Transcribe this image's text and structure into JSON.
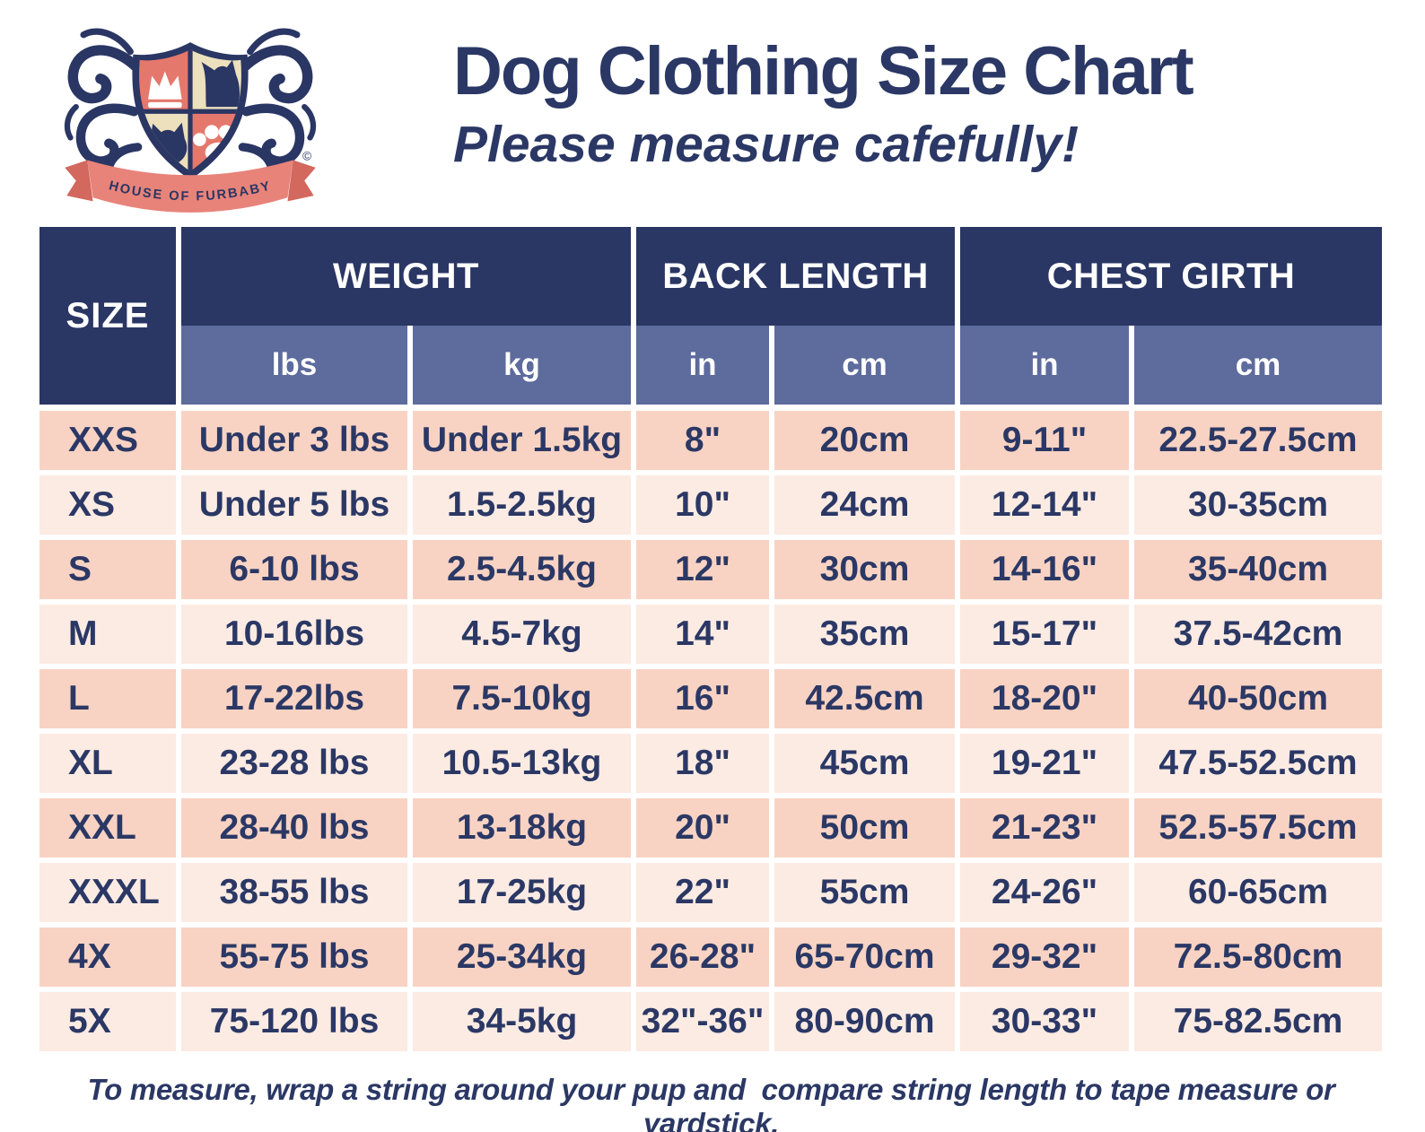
{
  "logo": {
    "banner": "HOUSE OF FURBABY",
    "copyright": "©"
  },
  "header": {
    "title": "Dog Clothing Size Chart",
    "subtitle": "Please measure cafefully!"
  },
  "table": {
    "size_header": "SIZE",
    "groups": [
      {
        "label": "WEIGHT",
        "units": [
          "lbs",
          "kg"
        ]
      },
      {
        "label": "BACK LENGTH",
        "units": [
          "in",
          "cm"
        ]
      },
      {
        "label": "CHEST GIRTH",
        "units": [
          "in",
          "cm"
        ]
      }
    ]
  },
  "chart_data": {
    "type": "table",
    "title": "Dog Clothing Size Chart",
    "columns": [
      "SIZE",
      "WEIGHT lbs",
      "WEIGHT kg",
      "BACK LENGTH in",
      "BACK LENGTH cm",
      "CHEST GIRTH in",
      "CHEST GIRTH cm"
    ],
    "rows": [
      [
        "XXS",
        "Under 3 lbs",
        "Under 1.5kg",
        "8\"",
        "20cm",
        "9-11\"",
        "22.5-27.5cm"
      ],
      [
        "XS",
        "Under 5 lbs",
        "1.5-2.5kg",
        "10\"",
        "24cm",
        "12-14\"",
        "30-35cm"
      ],
      [
        "S",
        "6-10 lbs",
        "2.5-4.5kg",
        "12\"",
        "30cm",
        "14-16\"",
        "35-40cm"
      ],
      [
        "M",
        "10-16lbs",
        "4.5-7kg",
        "14\"",
        "35cm",
        "15-17\"",
        "37.5-42cm"
      ],
      [
        "L",
        "17-22lbs",
        "7.5-10kg",
        "16\"",
        "42.5cm",
        "18-20\"",
        "40-50cm"
      ],
      [
        "XL",
        "23-28 lbs",
        "10.5-13kg",
        "18\"",
        "45cm",
        "19-21\"",
        "47.5-52.5cm"
      ],
      [
        "XXL",
        "28-40 lbs",
        "13-18kg",
        "20\"",
        "50cm",
        "21-23\"",
        "52.5-57.5cm"
      ],
      [
        "XXXL",
        "38-55 lbs",
        "17-25kg",
        "22\"",
        "55cm",
        "24-26\"",
        "60-65cm"
      ],
      [
        "4X",
        "55-75 lbs",
        "25-34kg",
        "26-28\"",
        "65-70cm",
        "29-32\"",
        "72.5-80cm"
      ],
      [
        "5X",
        "75-120 lbs",
        "34-5kg",
        "32\"-36\"",
        "80-90cm",
        "30-33\"",
        "75-82.5cm"
      ]
    ]
  },
  "footer": {
    "note": "To measure, wrap a string around your pup and  compare string length to tape measure or yardstick."
  },
  "colors": {
    "navy": "#2a3663",
    "slate": "#5d6b9d",
    "row_dark": "#f8d3c3",
    "row_light": "#fcebe3",
    "coral": "#e8837a",
    "cream": "#ece0bd",
    "text_navy": "#2b3865"
  }
}
